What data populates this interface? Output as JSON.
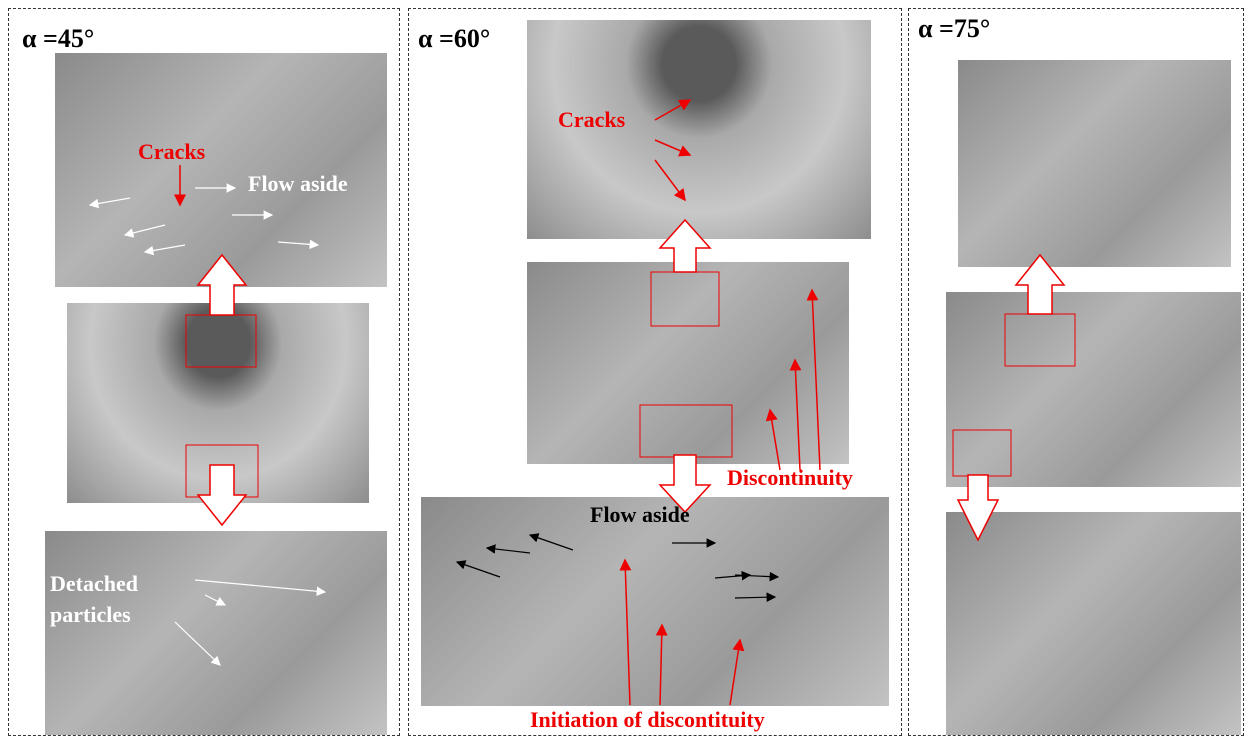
{
  "panels": [
    {
      "title": "α =45°",
      "labels": [
        "Cracks",
        "Flow aside",
        "Detached particles"
      ]
    },
    {
      "title": "α =60°",
      "labels": [
        "Cracks",
        "Discontinuity",
        "Flow aside",
        "Initiation of discontituity"
      ]
    },
    {
      "title": "α =75°",
      "labels": []
    }
  ]
}
